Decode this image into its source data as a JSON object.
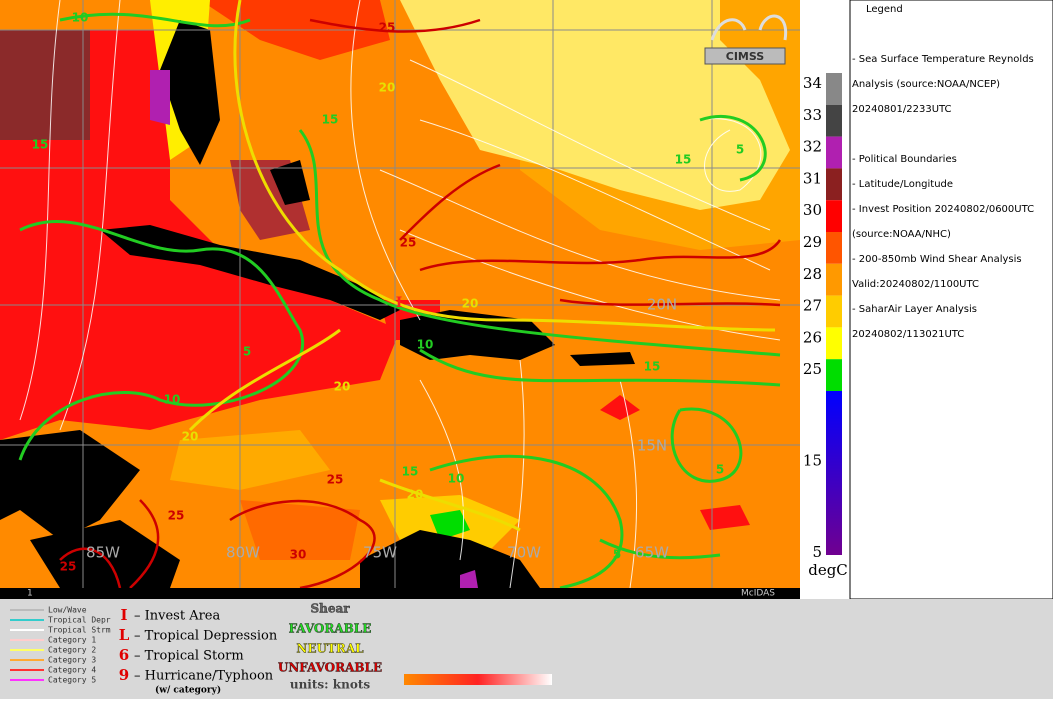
{
  "map": {
    "grid_labels": [
      "85W",
      "80W",
      "75W",
      "70W",
      "65W",
      "15N",
      "20N"
    ],
    "contour_labels": [
      {
        "text": "25",
        "color": "#cc0000"
      },
      {
        "text": "20",
        "color": "#e8e000"
      },
      {
        "text": "15",
        "color": "#22cc22"
      },
      {
        "text": "10",
        "color": "#22cc22"
      },
      {
        "text": "15",
        "color": "#22cc22"
      },
      {
        "text": "25",
        "color": "#cc0000"
      },
      {
        "text": "20",
        "color": "#e8e000"
      },
      {
        "text": "20",
        "color": "#e8e000"
      },
      {
        "text": "10",
        "color": "#22cc22"
      },
      {
        "text": "5",
        "color": "#22cc22"
      },
      {
        "text": "20",
        "color": "#e8e000"
      },
      {
        "text": "15",
        "color": "#22cc22"
      },
      {
        "text": "10",
        "color": "#22cc22"
      },
      {
        "text": "20",
        "color": "#e8e000"
      },
      {
        "text": "25",
        "color": "#cc0000"
      },
      {
        "text": "25",
        "color": "#cc0000"
      },
      {
        "text": "30",
        "color": "#cc0000"
      },
      {
        "text": "25",
        "color": "#cc0000"
      },
      {
        "text": "15",
        "color": "#22cc22"
      },
      {
        "text": "5",
        "color": "#22cc22"
      },
      {
        "text": "5",
        "color": "#22cc22"
      },
      {
        "text": "10",
        "color": "#22cc22"
      },
      {
        "text": "15",
        "color": "#22cc22"
      },
      {
        "text": "5",
        "color": "#22cc22"
      }
    ],
    "invest_marker": "I",
    "frame_number": "1",
    "software": "McIDAS",
    "logo": "CIMSS"
  },
  "colorbar": {
    "ticks": [
      34,
      33,
      32,
      31,
      30,
      29,
      28,
      27,
      26,
      25,
      15,
      5
    ],
    "unit": "degC",
    "colors": [
      "#888888",
      "#444444",
      "#b020b0",
      "#8b2020",
      "#ff0000",
      "#ff5500",
      "#ff9900",
      "#ffcc00",
      "#ffff00",
      "#00dd00"
    ]
  },
  "legend": {
    "title": "Legend",
    "lines": [
      "-  Sea Surface Temperature  Reynolds",
      "Analysis  (source:NOAA/NCEP)",
      "20240801/2233UTC",
      "-  Political Boundaries",
      "-  Latitude/Longitude",
      "-  Invest Position  20240802/0600UTC",
      "(source:NOAA/NHC)",
      "-  200-850mb Wind Shear Analysis",
      "Valid:20240802/1100UTC",
      "-  SaharAir Layer Analysis",
      "20240802/113021UTC"
    ]
  },
  "key": {
    "tracks": [
      {
        "name": "Low/Wave",
        "color": "#bbbbbb"
      },
      {
        "name": "Tropical Depr",
        "color": "#33cccc"
      },
      {
        "name": "Tropical Strm",
        "color": "#ffffff"
      },
      {
        "name": "Category 1",
        "color": "#ffcccc"
      },
      {
        "name": "Category 2",
        "color": "#ffff66"
      },
      {
        "name": "Category 3",
        "color": "#ffaa33"
      },
      {
        "name": "Category 4",
        "color": "#ff3333"
      },
      {
        "name": "Category 5",
        "color": "#ff33ff"
      }
    ],
    "symbols": [
      {
        "glyph": "I",
        "text": "– Invest Area"
      },
      {
        "glyph": "L",
        "text": "– Tropical Depression"
      },
      {
        "glyph": "6",
        "text": "– Tropical Storm"
      },
      {
        "glyph": "9",
        "text": "– Hurricane/Typhoon"
      }
    ],
    "symbols_note": "(w/ category)",
    "shear": {
      "title": "Shear",
      "favorable": "FAVORABLE",
      "neutral": "NEUTRAL",
      "unfavorable": "UNFAVORABLE",
      "units": "units: knots"
    }
  }
}
